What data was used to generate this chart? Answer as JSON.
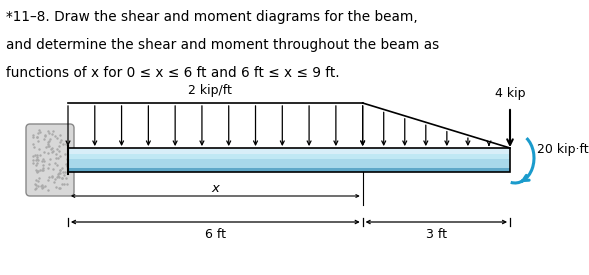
{
  "title_line1": "*11–8. Draw the shear and moment diagrams for the beam,",
  "title_line2": "and determine the shear and moment throughout the beam as",
  "title_line3": "functions of x for 0 ≤ x ≤ 6 ft and 6 ft ≤ x ≤ 9 ft.",
  "load_label": "2 kip/ft",
  "point_load_label": "4 kip",
  "moment_label": "20 kip·ft",
  "dim1_label": "6 ft",
  "dim2_label": "3 ft",
  "x_label": "x",
  "beam_fill": "#a8d8ea",
  "beam_top_highlight": "#d8eef8",
  "beam_bot_dark": "#5fa8c8",
  "arrow_color": "#1a9bcc",
  "wall_color": "#d8d8d8",
  "background": "#ffffff"
}
